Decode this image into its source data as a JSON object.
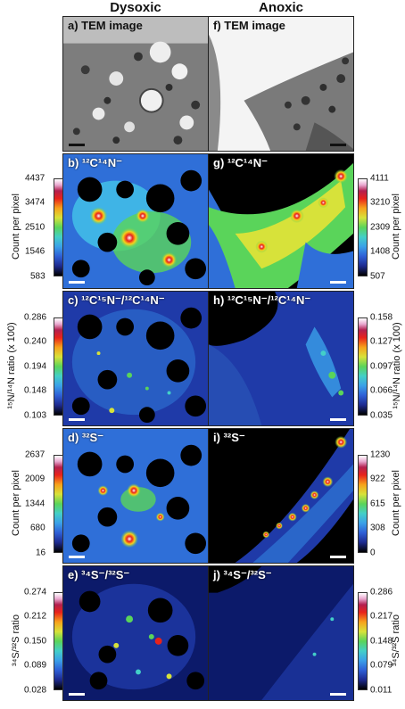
{
  "columns": {
    "left": "Dysoxic",
    "right": "Anoxic"
  },
  "panels": {
    "a": "a) TEM image",
    "f": "f) TEM image",
    "b": "b) ¹²C¹⁴N⁻",
    "g": "g) ¹²C¹⁴N⁻",
    "c": "c) ¹²C¹⁵N⁻/¹²C¹⁴N⁻",
    "h": "h) ¹²C¹⁵N⁻/¹²C¹⁴N⁻",
    "d": "d) ³²S⁻",
    "i": "i) ³²S⁻",
    "e": "e) ³⁴S⁻/³²S⁻",
    "j": "j) ³⁴S⁻/³²S⁻"
  },
  "colorbars": {
    "left": [
      {
        "label": "Count per pixel",
        "ticks": [
          "4437",
          "3474",
          "2510",
          "1546",
          "583"
        ]
      },
      {
        "label": "¹⁵N/¹⁴N ratio (x 100)",
        "ticks": [
          "0.286",
          "0.240",
          "0.194",
          "0.148",
          "0.103"
        ]
      },
      {
        "label": "Count per pixel",
        "ticks": [
          "2637",
          "2009",
          "1344",
          "680",
          "16"
        ]
      },
      {
        "label": "³⁴S/³²S ratio",
        "ticks": [
          "0.274",
          "0.212",
          "0.150",
          "0.089",
          "0.028"
        ]
      }
    ],
    "right": [
      {
        "label": "Count per pixel",
        "ticks": [
          "4111",
          "3210",
          "2309",
          "1408",
          "507"
        ]
      },
      {
        "label": "¹⁵N/¹⁴N ratio (x 100)",
        "ticks": [
          "0.158",
          "0.127",
          "0.097",
          "0.066",
          "0.035"
        ]
      },
      {
        "label": "Count per pixel",
        "ticks": [
          "1230",
          "922",
          "615",
          "308",
          "0"
        ]
      },
      {
        "label": "³⁴S/³²S ratio",
        "ticks": [
          "0.286",
          "0.217",
          "0.148",
          "0.079",
          "0.011"
        ]
      }
    ]
  },
  "colors": {
    "scale_dark": "#111111",
    "scale_light": "#ffffff"
  }
}
